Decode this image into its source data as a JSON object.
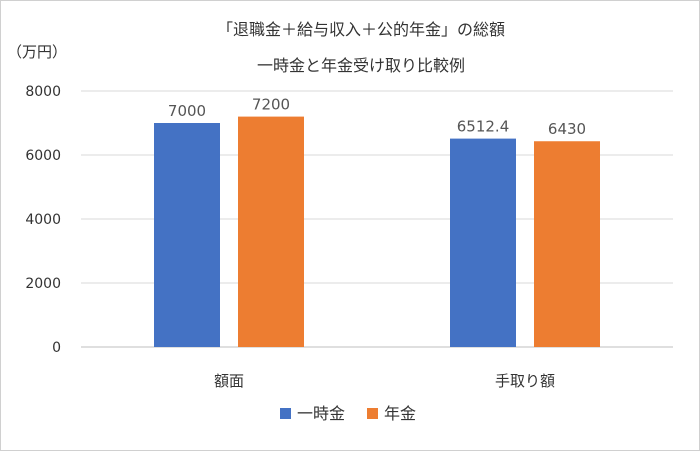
{
  "chart_data": {
    "type": "bar",
    "title": "「退職金＋給与収入＋公的年金」の総額",
    "subtitle": "一時金と年金受け取り比較例",
    "ylabel": "（万円）",
    "ylim": [
      0,
      8000
    ],
    "yticks": [
      0,
      2000,
      4000,
      6000,
      8000
    ],
    "grid": true,
    "legend_position": "bottom",
    "categories": [
      "額面",
      "手取り額"
    ],
    "series": [
      {
        "name": "一時金",
        "values": [
          7000,
          6512.4
        ],
        "value_labels": [
          "7000",
          "6512.4"
        ],
        "color": "#4472c4"
      },
      {
        "name": "年金",
        "values": [
          7200,
          6430
        ],
        "value_labels": [
          "7200",
          "6430"
        ],
        "color": "#ed7d31"
      }
    ]
  }
}
